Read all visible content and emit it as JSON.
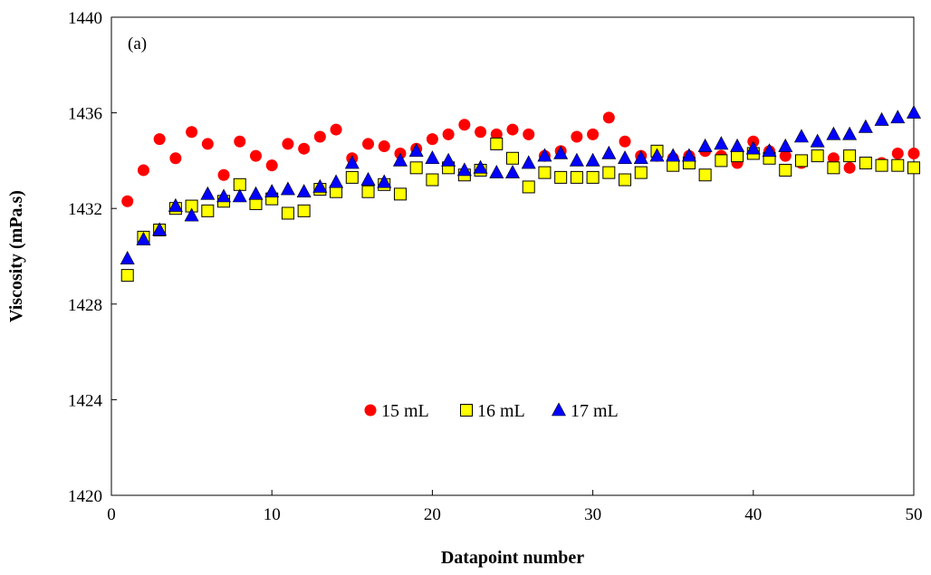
{
  "chart_data": {
    "type": "scatter",
    "xlabel": "Datapoint number",
    "ylabel": "Viscosity (mPa.s)",
    "annotation": "(a)",
    "xlim": [
      0,
      50
    ],
    "ylim": [
      1420,
      1440
    ],
    "xticks": [
      0,
      10,
      20,
      30,
      40,
      50
    ],
    "yticks": [
      1420,
      1424,
      1428,
      1432,
      1436,
      1440
    ],
    "grid": false,
    "legend_position": "center",
    "series": [
      {
        "name": "15 mL",
        "marker": "circle",
        "color": "#ff0000",
        "x": [
          1,
          2,
          3,
          4,
          5,
          6,
          7,
          8,
          9,
          10,
          11,
          12,
          13,
          14,
          15,
          16,
          17,
          18,
          19,
          20,
          21,
          22,
          23,
          24,
          25,
          26,
          27,
          28,
          29,
          30,
          31,
          32,
          33,
          34,
          35,
          36,
          37,
          38,
          39,
          40,
          41,
          42,
          43,
          44,
          45,
          46,
          47,
          48,
          49,
          50
        ],
        "y": [
          1432.3,
          1433.6,
          1434.9,
          1434.1,
          1435.2,
          1434.7,
          1433.4,
          1434.8,
          1434.2,
          1433.8,
          1434.7,
          1434.5,
          1435.0,
          1435.3,
          1434.1,
          1434.7,
          1434.6,
          1434.3,
          1434.5,
          1434.9,
          1435.1,
          1435.5,
          1435.2,
          1435.1,
          1435.3,
          1435.1,
          1434.2,
          1434.4,
          1435.0,
          1435.1,
          1435.8,
          1434.8,
          1434.2,
          1434.2,
          1434.1,
          1434.2,
          1434.4,
          1434.2,
          1433.9,
          1434.8,
          1434.4,
          1434.2,
          1433.9,
          1434.2,
          1434.1,
          1433.7,
          1433.9,
          1433.9,
          1434.3,
          1434.3
        ]
      },
      {
        "name": "16 mL",
        "marker": "square",
        "color": "#ffff00",
        "x": [
          1,
          2,
          3,
          4,
          5,
          6,
          7,
          8,
          9,
          10,
          11,
          12,
          13,
          14,
          15,
          16,
          17,
          18,
          19,
          20,
          21,
          22,
          23,
          24,
          25,
          26,
          27,
          28,
          29,
          30,
          31,
          32,
          33,
          34,
          35,
          36,
          37,
          38,
          39,
          40,
          41,
          42,
          43,
          44,
          45,
          46,
          47,
          48,
          49,
          50
        ],
        "y": [
          1429.2,
          1430.8,
          1431.1,
          1432.0,
          1432.1,
          1431.9,
          1432.3,
          1433.0,
          1432.2,
          1432.4,
          1431.8,
          1431.9,
          1432.8,
          1432.7,
          1433.3,
          1432.7,
          1433.0,
          1432.6,
          1433.7,
          1433.2,
          1433.7,
          1433.4,
          1433.6,
          1434.7,
          1434.1,
          1432.9,
          1433.5,
          1433.3,
          1433.3,
          1433.3,
          1433.5,
          1433.2,
          1433.5,
          1434.4,
          1433.8,
          1433.9,
          1433.4,
          1434.0,
          1434.2,
          1434.3,
          1434.1,
          1433.6,
          1434.0,
          1434.2,
          1433.7,
          1434.2,
          1433.9,
          1433.8,
          1433.8,
          1433.7
        ]
      },
      {
        "name": "17 mL",
        "marker": "triangle",
        "color": "#0000ff",
        "x": [
          1,
          2,
          3,
          4,
          5,
          6,
          7,
          8,
          9,
          10,
          11,
          12,
          13,
          14,
          15,
          16,
          17,
          18,
          19,
          20,
          21,
          22,
          23,
          24,
          25,
          26,
          27,
          28,
          29,
          30,
          31,
          32,
          33,
          34,
          35,
          36,
          37,
          38,
          39,
          40,
          41,
          42,
          43,
          44,
          45,
          46,
          47,
          48,
          49,
          50
        ],
        "y": [
          1429.9,
          1430.7,
          1431.1,
          1432.1,
          1431.7,
          1432.6,
          1432.5,
          1432.5,
          1432.6,
          1432.7,
          1432.8,
          1432.7,
          1432.9,
          1433.1,
          1433.9,
          1433.2,
          1433.1,
          1434.0,
          1434.4,
          1434.1,
          1434.0,
          1433.6,
          1433.7,
          1433.5,
          1433.5,
          1433.9,
          1434.2,
          1434.3,
          1434.0,
          1434.0,
          1434.3,
          1434.1,
          1434.1,
          1434.2,
          1434.2,
          1434.2,
          1434.6,
          1434.7,
          1434.6,
          1434.5,
          1434.4,
          1434.6,
          1435.0,
          1434.8,
          1435.1,
          1435.1,
          1435.4,
          1435.7,
          1435.8,
          1436.0
        ]
      }
    ]
  }
}
